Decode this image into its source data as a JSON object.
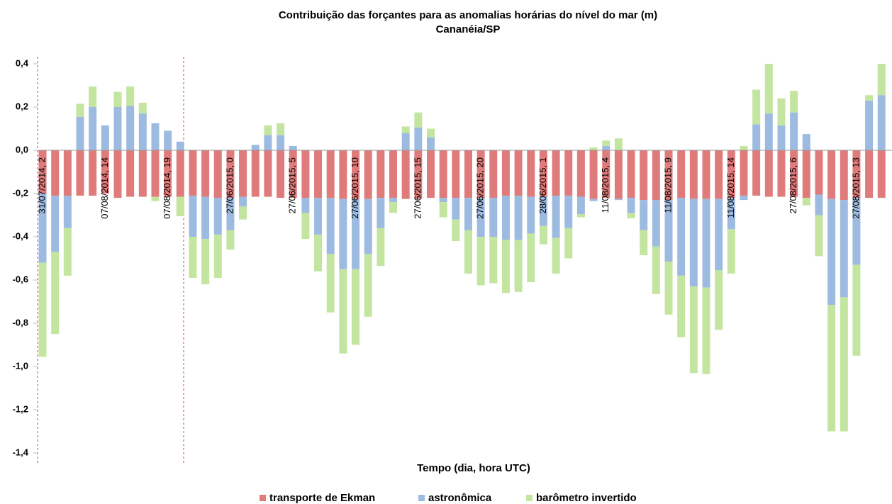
{
  "chart_data": {
    "type": "bar",
    "stacked": true,
    "title": "Contribuição das forçantes para as anomalias horárias do nível do mar (m)",
    "subtitle": "Cananéia/SP",
    "x_label": "Tempo (dia, hora UTC)",
    "categories": [
      "31/07/2014, 2",
      null,
      null,
      null,
      null,
      "07/08/2014, 14",
      null,
      null,
      null,
      null,
      "07/08/2014, 19",
      null,
      null,
      null,
      null,
      "27/06/2015, 0",
      null,
      null,
      null,
      null,
      "27/06/2015, 5",
      null,
      null,
      null,
      null,
      "27/06/2015, 10",
      null,
      null,
      null,
      null,
      "27/06/2015, 15",
      null,
      null,
      null,
      null,
      "27/06/2015, 20",
      null,
      null,
      null,
      null,
      "28/06/2015, 1",
      null,
      null,
      null,
      null,
      "11/08/2015, 4",
      null,
      null,
      null,
      null,
      "11/08/2015, 9",
      null,
      null,
      null,
      null,
      "11/08/2015, 14",
      null,
      null,
      null,
      null,
      "27/08/2015, 6",
      null,
      null,
      null,
      null,
      "27/08/2015, 13",
      null,
      null
    ],
    "series": [
      {
        "name": "transporte de Ekman",
        "color": "#e07b7b",
        "values": [
          -0.2,
          -0.21,
          -0.21,
          -0.21,
          -0.21,
          -0.2,
          -0.22,
          -0.215,
          -0.215,
          -0.215,
          -0.215,
          -0.215,
          -0.21,
          -0.215,
          -0.22,
          -0.22,
          -0.215,
          -0.215,
          -0.215,
          -0.22,
          -0.22,
          -0.22,
          -0.22,
          -0.22,
          -0.225,
          -0.225,
          -0.225,
          -0.22,
          -0.22,
          -0.225,
          -0.225,
          -0.22,
          -0.22,
          -0.22,
          -0.22,
          -0.22,
          -0.22,
          -0.21,
          -0.21,
          -0.215,
          -0.215,
          -0.21,
          -0.21,
          -0.215,
          -0.225,
          -0.22,
          -0.225,
          -0.22,
          -0.23,
          -0.23,
          -0.23,
          -0.22,
          -0.225,
          -0.225,
          -0.225,
          -0.22,
          -0.21,
          -0.21,
          -0.215,
          -0.215,
          -0.215,
          -0.22,
          -0.205,
          -0.225,
          -0.23,
          -0.22,
          -0.22,
          -0.22
        ]
      },
      {
        "name": "astronômica",
        "color": "#9dbbe0",
        "values": [
          -0.32,
          -0.26,
          -0.15,
          0.155,
          0.2,
          0.115,
          0.2,
          0.205,
          0.17,
          0.125,
          0.09,
          0.04,
          -0.19,
          -0.195,
          -0.17,
          -0.15,
          -0.045,
          0.025,
          0.07,
          0.07,
          0.02,
          -0.07,
          -0.17,
          -0.26,
          -0.325,
          -0.325,
          -0.255,
          -0.14,
          -0.02,
          0.08,
          0.105,
          0.06,
          -0.02,
          -0.1,
          -0.15,
          -0.18,
          -0.18,
          -0.205,
          -0.205,
          -0.17,
          -0.135,
          -0.195,
          -0.15,
          -0.08,
          -0.01,
          0.02,
          -0.005,
          -0.07,
          -0.14,
          -0.215,
          -0.285,
          -0.36,
          -0.405,
          -0.41,
          -0.33,
          -0.145,
          -0.02,
          0.12,
          0.17,
          0.115,
          0.175,
          0.075,
          -0.095,
          -0.49,
          -0.45,
          -0.31,
          0.23,
          0.255
        ]
      },
      {
        "name": "barômetro invertido",
        "color": "#c3e5a0",
        "values": [
          -0.435,
          -0.38,
          -0.22,
          0.06,
          0.095,
          0,
          0.07,
          0.09,
          0.05,
          -0.02,
          0,
          -0.09,
          -0.19,
          -0.21,
          -0.2,
          -0.09,
          -0.06,
          0,
          0.045,
          0.055,
          0,
          -0.12,
          -0.17,
          -0.27,
          -0.39,
          -0.35,
          -0.29,
          -0.175,
          -0.05,
          0.03,
          0.07,
          0.04,
          -0.07,
          -0.1,
          -0.2,
          -0.225,
          -0.215,
          -0.245,
          -0.24,
          -0.225,
          -0.085,
          -0.165,
          -0.14,
          -0.015,
          0.013,
          0.025,
          0.055,
          -0.025,
          -0.115,
          -0.22,
          -0.245,
          -0.285,
          -0.4,
          -0.4,
          -0.275,
          -0.205,
          0.02,
          0.16,
          0.23,
          0.125,
          0.1,
          -0.035,
          -0.19,
          -0.585,
          -0.62,
          -0.42,
          0.025,
          0.145
        ]
      }
    ],
    "ylim": [
      -1.4,
      0.4
    ],
    "yticks": [
      {
        "value": 0.4,
        "label": "0,4"
      },
      {
        "value": 0.2,
        "label": "0,2"
      },
      {
        "value": 0,
        "label": "0,0"
      },
      {
        "value": -0.2,
        "label": "-0,2"
      },
      {
        "value": -0.4,
        "label": "-0,4"
      },
      {
        "value": -0.6,
        "label": "-0,6"
      },
      {
        "value": -0.8,
        "label": "-0,8"
      },
      {
        "value": -1,
        "label": "-1,0"
      },
      {
        "value": -1.2,
        "label": "-1,2"
      },
      {
        "value": -1.4,
        "label": "-1,4"
      }
    ],
    "legend": "bottom"
  }
}
